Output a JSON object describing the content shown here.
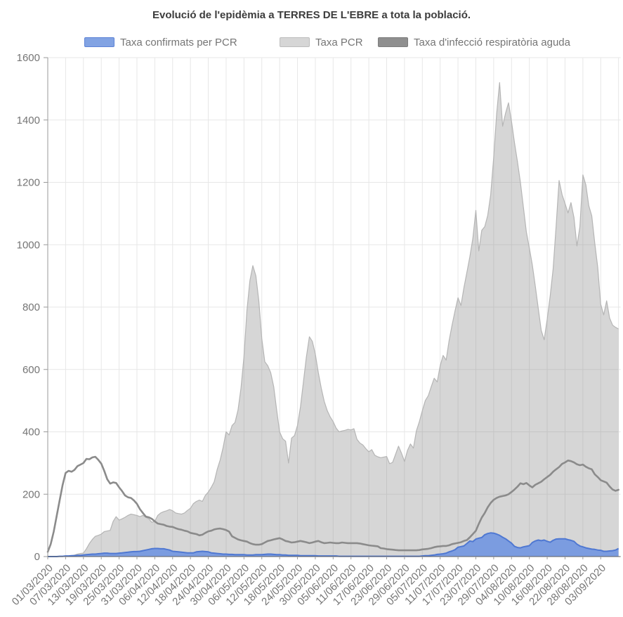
{
  "title": "Evolució de l'epidèmia a TERRES DE L'EBRE a tota la població.",
  "legend": [
    {
      "label": "Taxa confirmats per PCR",
      "color": "#82a3e3",
      "border": "#5d83d6"
    },
    {
      "label": "Taxa PCR",
      "color": "#d6d6d6",
      "border": "#bdbdbd"
    },
    {
      "label": "Taxa d'infecció respiratòria aguda",
      "color": "#8f8f8f",
      "border": "#7d7d7d"
    }
  ],
  "chart_data": {
    "type": "area",
    "title": "Evolució de l'epidèmia a TERRES DE L'EBRE a tota la població.",
    "xlabel": "",
    "ylabel": "",
    "ylim": [
      0,
      1600
    ],
    "y_ticks": [
      0,
      200,
      400,
      600,
      800,
      1000,
      1200,
      1400,
      1600
    ],
    "x_start_date": "01/03/2020",
    "x_end_date": "09/09/2020",
    "x_tick_every_days": 6,
    "x_tick_labels": [
      "01/03/2020",
      "07/03/2020",
      "13/03/2020",
      "19/03/2020",
      "25/03/2020",
      "31/03/2020",
      "06/04/2020",
      "12/04/2020",
      "18/04/2020",
      "24/04/2020",
      "30/04/2020",
      "06/05/2020",
      "12/05/2020",
      "18/05/2020",
      "24/05/2020",
      "30/05/2020",
      "05/06/2020",
      "11/06/2020",
      "17/06/2020",
      "23/06/2020",
      "29/06/2020",
      "05/07/2020",
      "11/07/2020",
      "17/07/2020",
      "23/07/2020",
      "29/07/2020",
      "04/08/2020",
      "10/08/2020",
      "16/08/2020",
      "22/08/2020",
      "28/08/2020",
      "03/09/2020"
    ],
    "grid": true,
    "legend_position": "top",
    "colors": {
      "confirmed_fill": "#7b9ce0",
      "confirmed_stroke": "#4f78d2",
      "pcr_fill": "rgba(128,128,128,0.32)",
      "pcr_stroke": "#b5b5b5",
      "ira_line": "#8b8b8b",
      "gridline": "#e7e7e7",
      "axis": "#9a9a9a",
      "baseline": "#5f5f5f",
      "tick_label": "#757575"
    },
    "series": [
      {
        "name": "Taxa confirmats per PCR",
        "type": "area",
        "values": [
          0,
          0,
          0,
          0,
          1,
          1,
          2,
          2,
          3,
          3,
          4,
          4,
          5,
          6,
          7,
          8,
          8,
          9,
          10,
          11,
          11,
          10,
          10,
          10,
          11,
          12,
          13,
          14,
          15,
          16,
          16,
          17,
          19,
          21,
          23,
          25,
          26,
          26,
          25,
          25,
          23,
          21,
          17,
          16,
          15,
          14,
          13,
          12,
          12,
          12,
          15,
          16,
          17,
          16,
          15,
          12,
          11,
          10,
          9,
          8,
          8,
          7,
          7,
          6,
          6,
          6,
          6,
          5,
          5,
          5,
          6,
          6,
          6,
          7,
          8,
          8,
          7,
          6,
          6,
          5,
          5,
          4,
          4,
          4,
          4,
          3,
          3,
          3,
          3,
          3,
          3,
          2,
          2,
          2,
          2,
          2,
          2,
          2,
          1,
          1,
          1,
          1,
          1,
          1,
          1,
          1,
          1,
          1,
          1,
          1,
          1,
          1,
          1,
          1,
          1,
          1,
          1,
          1,
          1,
          1,
          1,
          1,
          1,
          1,
          1,
          1,
          2,
          3,
          3,
          4,
          5,
          7,
          8,
          9,
          11,
          15,
          18,
          22,
          30,
          32,
          34,
          42,
          50,
          48,
          56,
          59,
          61,
          70,
          74,
          76,
          75,
          72,
          68,
          62,
          57,
          50,
          43,
          33,
          29,
          28,
          31,
          33,
          35,
          45,
          50,
          53,
          51,
          53,
          49,
          46,
          52,
          56,
          57,
          57,
          57,
          54,
          52,
          49,
          40,
          34,
          31,
          28,
          26,
          24,
          23,
          21,
          20,
          17,
          17,
          18,
          19,
          21,
          26
        ]
      },
      {
        "name": "Taxa PCR",
        "type": "area",
        "values": [
          0,
          0,
          0,
          0,
          0,
          0,
          1,
          2,
          3,
          5,
          8,
          10,
          11,
          25,
          42,
          55,
          65,
          68,
          72,
          80,
          82,
          84,
          113,
          128,
          117,
          121,
          126,
          132,
          136,
          134,
          132,
          128,
          132,
          126,
          121,
          110,
          113,
          132,
          140,
          144,
          147,
          151,
          147,
          140,
          138,
          136,
          140,
          148,
          155,
          170,
          177,
          181,
          177,
          196,
          207,
          222,
          240,
          280,
          310,
          350,
          400,
          390,
          420,
          430,
          470,
          540,
          640,
          790,
          885,
          933,
          900,
          820,
          700,
          625,
          612,
          590,
          545,
          470,
          400,
          378,
          370,
          300,
          380,
          388,
          420,
          480,
          560,
          640,
          705,
          690,
          650,
          590,
          540,
          498,
          468,
          448,
          433,
          412,
          400,
          403,
          405,
          408,
          406,
          410,
          376,
          364,
          358,
          346,
          336,
          343,
          325,
          320,
          317,
          319,
          321,
          298,
          302,
          328,
          354,
          331,
          305,
          340,
          361,
          348,
          403,
          433,
          468,
          500,
          516,
          545,
          572,
          560,
          612,
          645,
          630,
          692,
          742,
          788,
          830,
          805,
          862,
          912,
          962,
          1020,
          1110,
          980,
          1046,
          1058,
          1094,
          1160,
          1280,
          1420,
          1520,
          1380,
          1422,
          1455,
          1395,
          1327,
          1267,
          1199,
          1120,
          1041,
          989,
          935,
          868,
          795,
          725,
          695,
          762,
          835,
          922,
          1060,
          1206,
          1161,
          1132,
          1102,
          1135,
          1087,
          996,
          1057,
          1224,
          1192,
          1125,
          1093,
          1005,
          928,
          810,
          775,
          820,
          765,
          742,
          735,
          730
        ]
      },
      {
        "name": "Taxa d'infecció respiratòria aguda",
        "type": "line",
        "values": [
          15,
          40,
          80,
          130,
          180,
          230,
          268,
          275,
          272,
          278,
          290,
          295,
          300,
          313,
          312,
          318,
          320,
          310,
          298,
          275,
          248,
          234,
          238,
          236,
          222,
          210,
          196,
          190,
          188,
          180,
          169,
          152,
          140,
          128,
          126,
          121,
          113,
          106,
          104,
          102,
          98,
          96,
          95,
          91,
          88,
          86,
          83,
          81,
          76,
          74,
          72,
          68,
          70,
          76,
          81,
          83,
          87,
          89,
          90,
          88,
          85,
          80,
          65,
          60,
          55,
          52,
          50,
          48,
          43,
          40,
          38,
          38,
          40,
          45,
          50,
          52,
          55,
          57,
          59,
          55,
          50,
          48,
          45,
          46,
          48,
          50,
          48,
          46,
          43,
          45,
          48,
          50,
          46,
          43,
          44,
          45,
          44,
          43,
          43,
          45,
          44,
          43,
          43,
          43,
          43,
          42,
          40,
          38,
          36,
          35,
          34,
          33,
          27,
          26,
          24,
          23,
          22,
          21,
          20,
          20,
          20,
          20,
          20,
          20,
          20,
          21,
          23,
          24,
          25,
          27,
          30,
          32,
          33,
          34,
          34,
          36,
          40,
          42,
          44,
          46,
          50,
          53,
          62,
          72,
          83,
          105,
          125,
          140,
          158,
          172,
          182,
          188,
          192,
          194,
          196,
          200,
          207,
          215,
          224,
          235,
          232,
          236,
          228,
          222,
          230,
          235,
          240,
          248,
          255,
          262,
          272,
          280,
          287,
          297,
          302,
          308,
          306,
          302,
          296,
          293,
          295,
          288,
          283,
          280,
          264,
          255,
          245,
          241,
          237,
          225,
          215,
          211,
          214
        ]
      }
    ]
  }
}
